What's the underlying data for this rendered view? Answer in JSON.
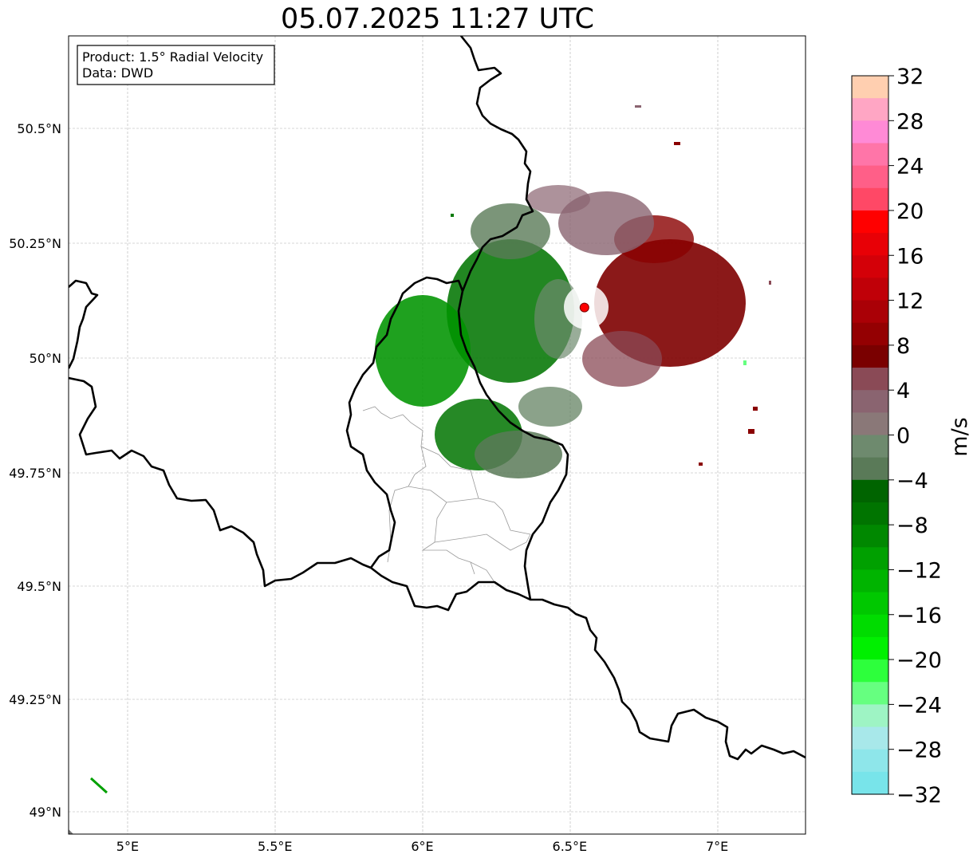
{
  "title": "05.07.2025 11:27 UTC",
  "info_box": {
    "product": "Product: 1.5° Radial Velocity",
    "data": "Data: DWD"
  },
  "map": {
    "lat_ticks": [
      "50.5°N",
      "50.25°N",
      "50°N",
      "49.75°N",
      "49.5°N",
      "49.25°N",
      "49°N"
    ],
    "lon_ticks": [
      "5°E",
      "5.5°E",
      "6°E",
      "6.5°E",
      "7°E"
    ],
    "extent": {
      "lon_min": 4.8,
      "lon_max": 7.3,
      "lat_min": 48.95,
      "lat_max": 50.7
    },
    "radar_site": {
      "lon": 6.55,
      "lat": 50.11,
      "marker_color": "#ff0000"
    }
  },
  "colorbar": {
    "label": "m/s",
    "tick_labels": [
      "32",
      "28",
      "24",
      "20",
      "16",
      "12",
      "8",
      "4",
      "0",
      "−4",
      "−8",
      "−12",
      "−16",
      "−20",
      "−24",
      "−28",
      "−32"
    ],
    "range": [
      -32,
      32
    ],
    "colors_top_to_bottom": [
      "#ffcfb0",
      "#ffa6c4",
      "#ff8ad6",
      "#ff75a8",
      "#ff5f88",
      "#ff4866",
      "#ff0000",
      "#e80006",
      "#d40008",
      "#c00008",
      "#aa0006",
      "#940002",
      "#7a0000",
      "#8a4a56",
      "#8a6470",
      "#8a7878",
      "#6e8a6e",
      "#5a7a58",
      "#006400",
      "#007400",
      "#008800",
      "#00a000",
      "#00b400",
      "#00c800",
      "#00dc00",
      "#00f000",
      "#2dff3c",
      "#66ff80",
      "#9ef4c4",
      "#a8e8ea",
      "#8ee6ea",
      "#78e4ea"
    ]
  }
}
